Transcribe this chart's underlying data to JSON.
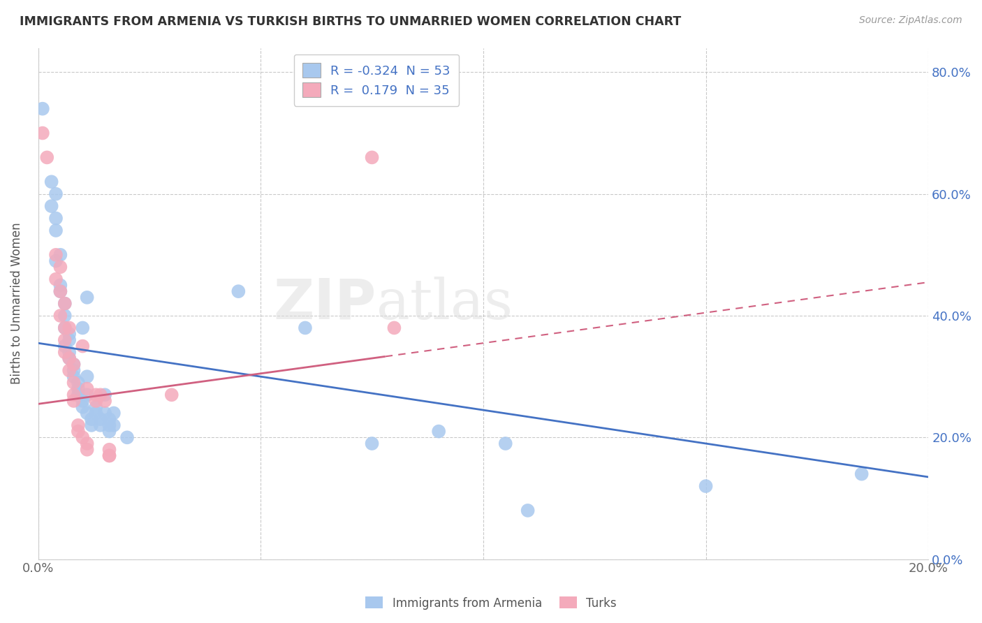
{
  "title": "IMMIGRANTS FROM ARMENIA VS TURKISH BIRTHS TO UNMARRIED WOMEN CORRELATION CHART",
  "source": "Source: ZipAtlas.com",
  "ylabel": "Births to Unmarried Women",
  "xlim": [
    0.0,
    0.2
  ],
  "ylim": [
    0.0,
    0.84
  ],
  "x_ticks": [
    0.0,
    0.05,
    0.1,
    0.15,
    0.2
  ],
  "x_tick_labels": [
    "0.0%",
    "",
    "",
    "",
    "20.0%"
  ],
  "y_ticks": [
    0.0,
    0.2,
    0.4,
    0.6,
    0.8
  ],
  "y_tick_labels_right": [
    "0.0%",
    "20.0%",
    "40.0%",
    "60.0%",
    "80.0%"
  ],
  "legend1_label": "R = -0.324  N = 53",
  "legend2_label": "R =  0.179  N = 35",
  "legend1_series": "Immigrants from Armenia",
  "legend2_series": "Turks",
  "blue_color": "#A8C8EE",
  "pink_color": "#F4AABB",
  "line_blue": "#4472C4",
  "line_pink": "#D06080",
  "blue_scatter": [
    [
      0.001,
      0.74
    ],
    [
      0.003,
      0.62
    ],
    [
      0.004,
      0.6
    ],
    [
      0.003,
      0.58
    ],
    [
      0.004,
      0.56
    ],
    [
      0.004,
      0.54
    ],
    [
      0.005,
      0.5
    ],
    [
      0.004,
      0.49
    ],
    [
      0.005,
      0.45
    ],
    [
      0.005,
      0.44
    ],
    [
      0.006,
      0.4
    ],
    [
      0.006,
      0.42
    ],
    [
      0.006,
      0.38
    ],
    [
      0.007,
      0.37
    ],
    [
      0.007,
      0.36
    ],
    [
      0.006,
      0.35
    ],
    [
      0.007,
      0.34
    ],
    [
      0.007,
      0.33
    ],
    [
      0.008,
      0.32
    ],
    [
      0.008,
      0.31
    ],
    [
      0.008,
      0.3
    ],
    [
      0.009,
      0.29
    ],
    [
      0.009,
      0.28
    ],
    [
      0.009,
      0.27
    ],
    [
      0.01,
      0.26
    ],
    [
      0.01,
      0.25
    ],
    [
      0.01,
      0.38
    ],
    [
      0.011,
      0.43
    ],
    [
      0.011,
      0.3
    ],
    [
      0.011,
      0.27
    ],
    [
      0.011,
      0.24
    ],
    [
      0.012,
      0.23
    ],
    [
      0.012,
      0.22
    ],
    [
      0.013,
      0.25
    ],
    [
      0.013,
      0.24
    ],
    [
      0.014,
      0.23
    ],
    [
      0.014,
      0.22
    ],
    [
      0.015,
      0.27
    ],
    [
      0.015,
      0.24
    ],
    [
      0.016,
      0.23
    ],
    [
      0.016,
      0.22
    ],
    [
      0.016,
      0.21
    ],
    [
      0.017,
      0.24
    ],
    [
      0.017,
      0.22
    ],
    [
      0.02,
      0.2
    ],
    [
      0.045,
      0.44
    ],
    [
      0.06,
      0.38
    ],
    [
      0.075,
      0.19
    ],
    [
      0.09,
      0.21
    ],
    [
      0.105,
      0.19
    ],
    [
      0.11,
      0.08
    ],
    [
      0.15,
      0.12
    ],
    [
      0.185,
      0.14
    ]
  ],
  "pink_scatter": [
    [
      0.001,
      0.7
    ],
    [
      0.002,
      0.66
    ],
    [
      0.004,
      0.5
    ],
    [
      0.004,
      0.46
    ],
    [
      0.005,
      0.48
    ],
    [
      0.005,
      0.44
    ],
    [
      0.005,
      0.4
    ],
    [
      0.006,
      0.42
    ],
    [
      0.006,
      0.38
    ],
    [
      0.006,
      0.36
    ],
    [
      0.006,
      0.34
    ],
    [
      0.007,
      0.38
    ],
    [
      0.007,
      0.33
    ],
    [
      0.007,
      0.31
    ],
    [
      0.008,
      0.32
    ],
    [
      0.008,
      0.29
    ],
    [
      0.008,
      0.27
    ],
    [
      0.008,
      0.26
    ],
    [
      0.009,
      0.22
    ],
    [
      0.009,
      0.21
    ],
    [
      0.01,
      0.2
    ],
    [
      0.01,
      0.35
    ],
    [
      0.011,
      0.19
    ],
    [
      0.011,
      0.28
    ],
    [
      0.011,
      0.18
    ],
    [
      0.013,
      0.27
    ],
    [
      0.013,
      0.26
    ],
    [
      0.014,
      0.27
    ],
    [
      0.015,
      0.26
    ],
    [
      0.016,
      0.18
    ],
    [
      0.016,
      0.17
    ],
    [
      0.016,
      0.17
    ],
    [
      0.03,
      0.27
    ],
    [
      0.075,
      0.66
    ],
    [
      0.08,
      0.38
    ]
  ],
  "blue_line": [
    [
      0.0,
      0.355
    ],
    [
      0.2,
      0.135
    ]
  ],
  "pink_line": [
    [
      0.0,
      0.255
    ],
    [
      0.2,
      0.455
    ]
  ]
}
